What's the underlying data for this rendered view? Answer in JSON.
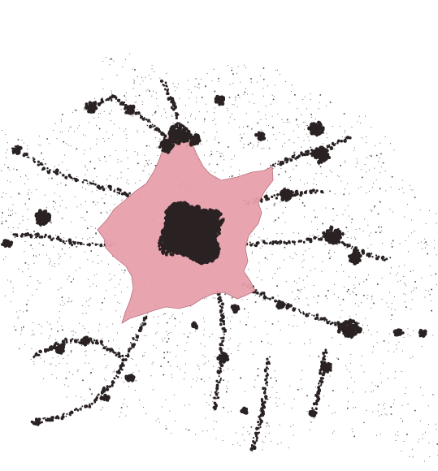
{
  "map": {
    "colors": {
      "background": "#ffffff",
      "built_up": "#2a2222",
      "highlight_fill": "#e8a0ab",
      "highlight_stroke": "#b5707c"
    },
    "layers": [
      {
        "name": "scattered-settlements",
        "kind": "dot-density"
      },
      {
        "name": "urban-clusters",
        "kind": "dark-blobs"
      },
      {
        "name": "highlighted-agglomeration",
        "kind": "pink-polygon"
      },
      {
        "name": "dense-core",
        "kind": "dark-blob"
      }
    ]
  }
}
